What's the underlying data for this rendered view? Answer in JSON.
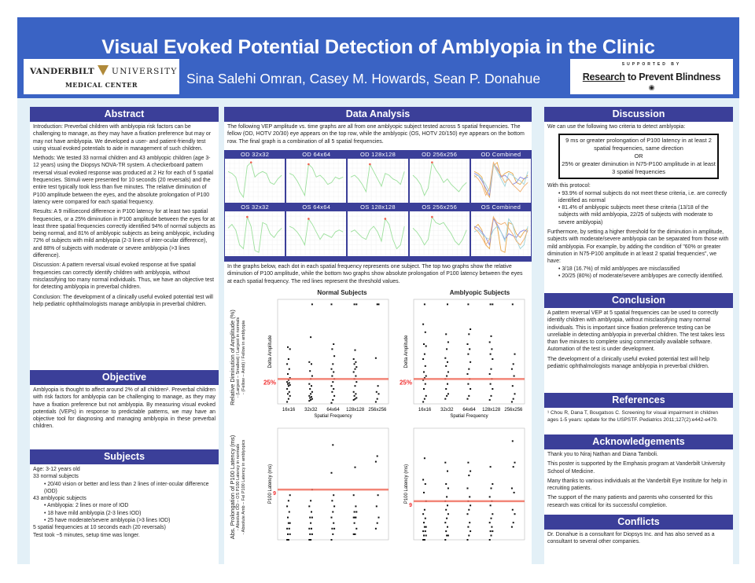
{
  "header": {
    "title": "Visual Evoked Potential Detection of Amblyopia in the Clinic",
    "authors": "Sina Salehi Omran, Casey M. Howards, Sean P. Donahue",
    "vanderbilt_logo": {
      "left": "VANDERBILT",
      "right": "UNIVERSITY",
      "sub": "MEDICAL CENTER"
    },
    "rpb_logo": {
      "supported": "SUPPORTED BY",
      "name_a": "Research",
      "name_b": " to Prevent Blindness"
    }
  },
  "abstract": {
    "title": "Abstract",
    "paragraphs": [
      "Introduction:  Preverbal children with amblyopia risk factors can be challenging to manage, as they may have a fixation preference but may or may not have amblyopia.  We developed a user-  and patient-friendly test using visual evoked potentials to aide in management of such children.",
      "Methods:  We tested 33 normal children and 43 amblyopic children (age 3-12 years) using the Diopsys NOVA-TR system.  A checkerboard pattern reversal visual evoked response was produced at 2 Hz for each of 5 spatial frequencies.  Stimuli were presented for 10 seconds (20 reversals) and the entire test typically took less than five minutes.  The relative diminution of P100 amplitude between the eyes, and the absolute prolongation of P100 latency were compared for each spatial frequency.",
      "Results:  A 9 millisecond difference in P100 latency for at least two spatial frequencies, or a 25% diminution in P100 amplitude between the eyes for at least three spatial frequencies correctly identified 94% of normal subjects as being normal, and 81% of amblyopic subjects as being amblyopic, including 72% of subjects with mild amblyopia (2-3 lines of inter-ocular difference), and 88% of subjects with moderate or severe amblyopia (>3 lines difference).",
      "Discussion:  A pattern reversal visual evoked response at five spatial frequencies can correctly identify children with amblyopia, without misclassifying too many normal individuals.   Thus, we have an objective test for detecting amblyopia in preverbal children.",
      "Conclusion:  The development of a clinically useful evoked potential test will help pediatric ophthalmologists manage amblyopia in preverbal children."
    ]
  },
  "objective": {
    "title": "Objective",
    "text": "Amblyopia is thought to affect around 2% of all children¹. Preverbal children with risk factors for amblyopia can be challenging to manage, as they may have a fixation preference but not amblyopia. By measuring visual evoked potentials (VEPs) in response to predictable patterns, we may have an objective tool for diagnosing and managing amblyopia in these preverbal children."
  },
  "subjects": {
    "title": "Subjects",
    "lines": [
      {
        "t": "Age: 3-12 years old",
        "i": 0
      },
      {
        "t": "33 normal subjects",
        "i": 0
      },
      {
        "t": "• 20/40 vision or better and less than 2 lines of inter-ocular difference (IOD)",
        "i": 1
      },
      {
        "t": "43 amblyopic subjects",
        "i": 0
      },
      {
        "t": "• Amblyopia: 2 lines or more of IOD",
        "i": 1
      },
      {
        "t": "• 18 have mild amblyopia (2-3 lines IOD)",
        "i": 1
      },
      {
        "t": "• 25 have moderate/severe amblyopia (>3 lines IOD)",
        "i": 1
      },
      {
        "t": "5 spatial frequencies at 10 seconds each (20 reversals)",
        "i": 0
      },
      {
        "t": "Test took ~5 minutes, setup time was longer.",
        "i": 0
      }
    ]
  },
  "data_analysis": {
    "title": "Data Analysis",
    "intro": "The following VEP amplitude vs. time graphs are all from one amblyopic subject tested across 5 spatial frequencies. The fellow (OD, HOTV 20/30) eye appears on the top row, while the amblyopic (OS, HOTV 20/150) eye appears on the bottom row. The final graph is a combination of all 5 spatial frequencies.",
    "od_titles": [
      "OD 32x32",
      "OD 64x64",
      "OD 128x128",
      "OD 256x256",
      "OD Combined"
    ],
    "os_titles": [
      "OS 32x32",
      "OS 64x64",
      "OS 128x128",
      "OS 256x256",
      "OS Combined"
    ],
    "scatter_intro": "In the graphs below, each dot in each spatial frequency represents one subject. The top two graphs show the relative diminution of P100 amplitude, while the bottom two graphs show absolute prolongation of P100 latency between the eyes at each spatial frequency. The red lines represent the threshold values.",
    "normal_title": "Normal Subjects",
    "amblyopic_title": "Amblyopic Subjects",
    "amp_row_label": "Relative Diminution of Amplitude (%)",
    "amp_row_sub1": "- (Largest – Smallest) / Largest in normals",
    "amp_row_sub2": "- (Fellow – Ambl) / Fellow in amblyopia",
    "lat_row_label": "Abs. Prolongation of P100 Latency (ms)",
    "lat_row_sub1": "- Absolute OD – OS P100 Latency in normals",
    "lat_row_sub2": "- Absolute Amb – Fel P100 Latency in amblyopics"
  },
  "chart_data": [
    {
      "type": "scatter",
      "name": "normal-amplitude",
      "title": "Normal Subjects",
      "xlabel": "Spatial Frequency",
      "ylabel": "Delta Amplitude",
      "categories": [
        "16x16",
        "32x32",
        "64x64",
        "128x128",
        "256x256"
      ],
      "ylim": [
        0,
        105
      ],
      "threshold": 25,
      "threshold_label": "25%",
      "values": [
        [
          2,
          5,
          8,
          10,
          12,
          15,
          18,
          19,
          20,
          21,
          22,
          24,
          26,
          30,
          35,
          40,
          45,
          55,
          57
        ],
        [
          3,
          4,
          5,
          6,
          7,
          8,
          10,
          12,
          15,
          18,
          20,
          25,
          28,
          33,
          40,
          42,
          67,
          100
        ],
        [
          1,
          4,
          8,
          12,
          15,
          18,
          22,
          25,
          28,
          32,
          35,
          40,
          48,
          55,
          60,
          100
        ],
        [
          4,
          5,
          6,
          8,
          10,
          12,
          18,
          22,
          25,
          28,
          32,
          35,
          37,
          40,
          42,
          45,
          54,
          100,
          100
        ],
        [
          2,
          5,
          10,
          12,
          18,
          46,
          100,
          100
        ]
      ]
    },
    {
      "type": "scatter",
      "name": "amblyopic-amplitude",
      "title": "Amblyopic Subjects",
      "xlabel": "Spatial Frequency",
      "ylabel": "Delta Amplitude",
      "categories": [
        "16x16",
        "32x32",
        "64x64",
        "128x128",
        "256x256"
      ],
      "ylim": [
        0,
        105
      ],
      "threshold": 25,
      "threshold_label": "25%",
      "values": [
        [
          2,
          5,
          8,
          15,
          20,
          24,
          26,
          28,
          32,
          38,
          45,
          50,
          58,
          60,
          72,
          80,
          100
        ],
        [
          5,
          8,
          10,
          15,
          20,
          25,
          28,
          32,
          38,
          42,
          46,
          55,
          62,
          70,
          100
        ],
        [
          5,
          8,
          15,
          20,
          25,
          30,
          35,
          42,
          50,
          55,
          60,
          70,
          75,
          100
        ],
        [
          4,
          8,
          15,
          20,
          25,
          30,
          35,
          45,
          50,
          55,
          62,
          68,
          100,
          100
        ],
        [
          2,
          5,
          10,
          18,
          28,
          35,
          40,
          50,
          100
        ]
      ]
    },
    {
      "type": "scatter",
      "name": "normal-latency",
      "title": "Normal Subjects",
      "xlabel": "",
      "ylabel": "P100 Latency (ms)",
      "categories": [
        "16x16",
        "32x32",
        "64x64",
        "128x128",
        "256x256"
      ],
      "ylim": [
        0,
        20
      ],
      "threshold": 9,
      "threshold_label": "9",
      "values": [
        [
          0,
          0,
          1,
          1,
          2,
          2,
          3,
          3,
          4,
          5,
          6,
          7,
          8
        ],
        [
          0,
          0,
          1,
          1,
          2,
          2,
          3,
          4,
          4,
          5,
          6,
          7,
          9
        ],
        [
          0,
          1,
          2,
          2,
          3,
          4,
          5,
          6,
          7,
          8,
          12,
          18
        ],
        [
          1,
          1,
          2,
          3,
          4,
          4,
          4,
          5,
          5,
          6,
          8,
          13
        ],
        [
          2,
          3,
          4,
          6,
          8,
          14,
          15
        ]
      ]
    },
    {
      "type": "scatter",
      "name": "amblyopic-latency",
      "title": "Amblyopic Subjects",
      "xlabel": "",
      "ylabel": "P100 Latency (ms)",
      "categories": [
        "16x16",
        "32x32",
        "64x64",
        "128x128",
        "256x256"
      ],
      "ylim": [
        0,
        26
      ],
      "threshold": 9,
      "threshold_label": "9",
      "values": [
        [
          0,
          0,
          1,
          1,
          2,
          2,
          3,
          3,
          4,
          5,
          6,
          7,
          9,
          11,
          13,
          14,
          19
        ],
        [
          0,
          1,
          1,
          2,
          3,
          4,
          5,
          6,
          7,
          8,
          9,
          10,
          12,
          13,
          16,
          18
        ],
        [
          0,
          1,
          2,
          3,
          4,
          6,
          7,
          8,
          9,
          10,
          12,
          15,
          16,
          18
        ],
        [
          0,
          1,
          2,
          2,
          3,
          4,
          5,
          6,
          8,
          9,
          10,
          12,
          13,
          17
        ],
        [
          3,
          4,
          6,
          7,
          11,
          12,
          17,
          18,
          25
        ]
      ]
    },
    {
      "type": "line",
      "name": "vep-waveforms",
      "series": {
        "OD": [
          [
            5,
            4,
            2,
            -6,
            -9,
            8,
            10,
            2,
            4,
            5,
            4,
            -1,
            -2,
            1,
            3
          ],
          [
            4,
            3,
            0,
            -4,
            -8,
            9,
            7,
            2,
            3,
            1,
            -2,
            -1,
            2,
            1,
            2
          ],
          [
            2,
            3,
            1,
            -2,
            -6,
            9,
            5,
            1,
            -3,
            4,
            3,
            1,
            0,
            -2,
            5
          ],
          [
            3,
            1,
            -2,
            -8,
            -4,
            10,
            6,
            3,
            -1,
            1,
            -2,
            -4,
            -6,
            -3,
            -1
          ]
        ],
        "OS": [
          [
            3,
            5,
            2,
            -6,
            -8,
            9,
            4,
            -9,
            -10,
            6,
            5,
            0,
            -2,
            1,
            3
          ],
          [
            4,
            3,
            1,
            -2,
            -6,
            8,
            5,
            1,
            -3,
            0,
            -1,
            -2,
            1,
            2,
            1
          ],
          [
            1,
            2,
            0,
            -2,
            -3,
            2,
            4,
            1,
            -4,
            8,
            5,
            -3,
            -8,
            -6,
            4
          ],
          [
            3,
            1,
            -2,
            -6,
            -3,
            9,
            6,
            5,
            6,
            3,
            0,
            -4,
            -6,
            -3,
            2
          ]
        ]
      },
      "colors": [
        "#e8a84a",
        "#8a8ae0",
        "#9fd3d8",
        "#f0b070",
        "#7fd07f"
      ]
    }
  ],
  "discussion": {
    "title": "Discussion",
    "intro": "We can use the following two criteria to detect amblyopia:",
    "criteria": [
      "9 ms or greater prolongation of P100 latency in at least 2 spatial frequencies, same direction",
      "OR",
      "25% or greater diminution in N75-P100 amplitude in at least 3 spatial frequencies"
    ],
    "protocol": "With this protocol:",
    "bullets": [
      "• 93.9% of normal subjects do not meet these criteria, i.e. are correctly identified as normal",
      "• 81.4% of amblyopic subjects meet these criteria (13/18 of the subjects with mild amblyopia, 22/25 of subjects with moderate to severe amblyopia)"
    ],
    "furthermore": "Furthermore, by setting a higher threshold for the diminution in amplitude, subjects with moderate/severe amblyopia can be separated from those with mild amblyopia. For example, by adding the condition of \"60% or greater diminution in N75-P100 amplitude in at least 2 spatial frequencies\", we have:",
    "bullets2": [
      "• 3/18 (16.7%) of mild amblyopes are misclassified",
      "• 20/25 (80%) of moderate/severe amblyopes are correctly identified."
    ]
  },
  "conclusion": {
    "title": "Conclusion",
    "paragraphs": [
      "A pattern reversal VEP at 5 spatial frequencies can be used to correctly identify children with amblyopia, without misclassifying many normal individuals. This is important since fixation preference testing can be unreliable in detecting amblyopia in preverbal children. The test takes less than five minutes to complete using commercially available software. Automation of the test is under development.",
      "The development of a clinically useful evoked potential test will help pediatric ophthalmologists manage amblyopia in preverbal children."
    ]
  },
  "references": {
    "title": "References",
    "text": "¹ Chou R, Dana T, Bougatsos C. Screening for visual impairment in children ages 1-5 years: update for the USPSTF. Pediatrics 2011;127(2):e442-e479."
  },
  "acknowledgements": {
    "title": "Acknowledgements",
    "paragraphs": [
      "Thank you to Niraj Nathan and Diana Tamboli.",
      "This poster is supported by the Emphasis program at Vanderbilt University School of Medicine.",
      "Many thanks to various individuals at the Vanderbilt Eye Institute for help in recruiting patients.",
      "The support of the many patients and parents who consented for this research was critical for its successful completion."
    ]
  },
  "conflicts": {
    "title": "Conflicts",
    "text": "Dr. Donahue is a consultant for Diopsys Inc. and has also served as a consultant to several other companies."
  },
  "colors": {
    "header": "#3a63c4",
    "section": "#3b3f99",
    "background": "#e3f0f7",
    "threshold": "#f07060"
  }
}
